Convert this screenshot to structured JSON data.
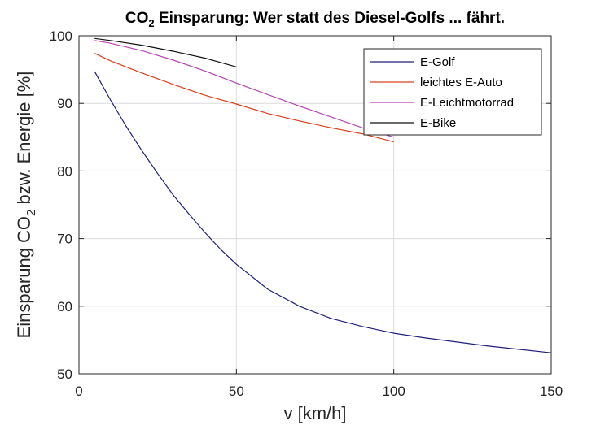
{
  "chart_data": {
    "type": "line",
    "title": {
      "prefix": "CO",
      "subscript": "2",
      "suffix": " Einsparung: Wer statt des Diesel-Golfs ... fährt."
    },
    "xlabel": "v [km/h]",
    "ylabel": {
      "prefix": "Einsparung CO",
      "subscript": "2",
      "suffix": "  bzw. Energie  [%]"
    },
    "xlim": [
      0,
      150
    ],
    "ylim": [
      50,
      100
    ],
    "xticks": [
      "0",
      "50",
      "100",
      "150"
    ],
    "yticks": [
      "50",
      "60",
      "70",
      "80",
      "90",
      "100"
    ],
    "grid": true,
    "legend_position": "top-right",
    "series": [
      {
        "name": "E-Golf",
        "color": "#1f1f7a",
        "x": [
          5,
          10,
          15,
          20,
          25,
          30,
          35,
          40,
          45,
          50,
          60,
          70,
          80,
          90,
          100,
          110,
          120,
          130,
          140,
          150
        ],
        "y": [
          94.7,
          90.5,
          86.6,
          83.0,
          79.6,
          76.4,
          73.6,
          70.9,
          68.4,
          66.2,
          62.5,
          60.0,
          58.2,
          57.0,
          56.0,
          55.3,
          54.7,
          54.1,
          53.6,
          53.1
        ]
      },
      {
        "name": "leichtes E-Auto",
        "color": "#d9401a",
        "x": [
          5,
          10,
          20,
          30,
          40,
          50,
          60,
          70,
          80,
          90,
          100
        ],
        "y": [
          97.4,
          96.3,
          94.5,
          92.8,
          91.2,
          89.9,
          88.5,
          87.4,
          86.4,
          85.5,
          84.3
        ]
      },
      {
        "name": "E-Leichtmotorrad",
        "color": "#b545b5",
        "x": [
          5,
          10,
          20,
          30,
          40,
          50,
          60,
          70,
          80,
          90,
          100
        ],
        "y": [
          99.3,
          98.9,
          97.8,
          96.4,
          94.8,
          93.0,
          91.3,
          89.6,
          88.0,
          86.4,
          85.0
        ]
      },
      {
        "name": "E-Bike",
        "color": "#111111",
        "x": [
          5,
          10,
          20,
          30,
          40,
          50
        ],
        "y": [
          99.6,
          99.3,
          98.6,
          97.7,
          96.7,
          95.4
        ]
      }
    ]
  }
}
